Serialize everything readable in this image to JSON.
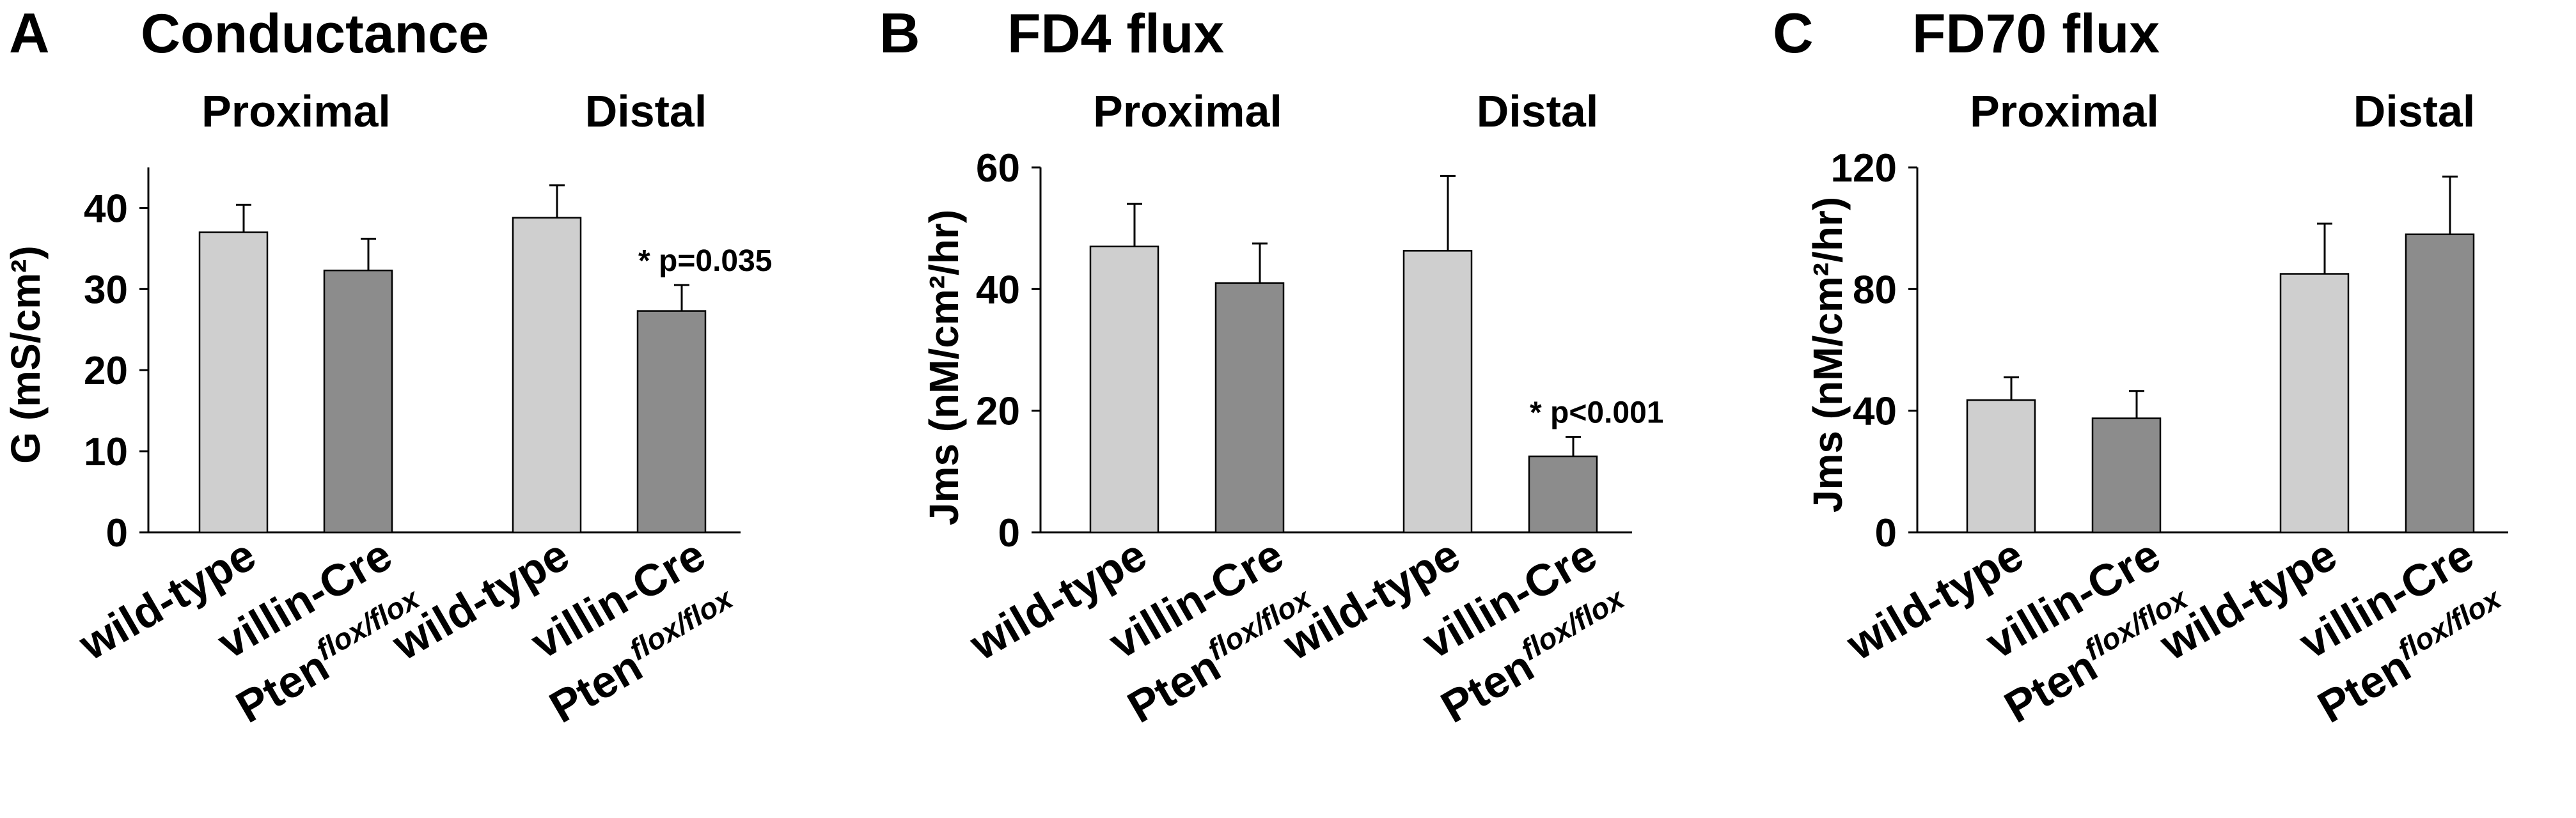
{
  "colors": {
    "wild_type_bar": "#cfcfcf",
    "mutant_bar": "#8c8c8c",
    "axis": "#000000"
  },
  "chart_data": [
    {
      "type": "bar",
      "panel_letter": "A",
      "title": "Conductance",
      "groups": [
        "Proximal",
        "Distal"
      ],
      "categories": [
        "wild-type",
        "villin-Cre Ptenflox/flox",
        "wild-type",
        "villin-Cre Ptenflox/flox"
      ],
      "values": [
        37,
        32.3,
        38.8,
        27.3
      ],
      "errors": [
        3.4,
        3.9,
        4.0,
        3.2
      ],
      "ylabel": "G (mS/cm²)",
      "ylim": [
        0,
        45
      ],
      "yticks": [
        0,
        10,
        20,
        30,
        40
      ],
      "annotations": [
        {
          "bar": 3,
          "text": "* p=0.035"
        }
      ]
    },
    {
      "type": "bar",
      "panel_letter": "B",
      "title": "FD4 flux",
      "groups": [
        "Proximal",
        "Distal"
      ],
      "categories": [
        "wild-type",
        "villin-Cre Ptenflox/flox",
        "wild-type",
        "villin-Cre Ptenflox/flox"
      ],
      "values": [
        47,
        41,
        46.3,
        12.5
      ],
      "errors": [
        7,
        6.5,
        12.3,
        3.2
      ],
      "ylabel": "Jms (nM/cm²/hr)",
      "ylim": [
        0,
        60
      ],
      "yticks": [
        0,
        20,
        40,
        60
      ],
      "annotations": [
        {
          "bar": 3,
          "text": "* p<0.001"
        }
      ]
    },
    {
      "type": "bar",
      "panel_letter": "C",
      "title": "FD70 flux",
      "groups": [
        "Proximal",
        "Distal"
      ],
      "categories": [
        "wild-type",
        "villin-Cre Ptenflox/flox",
        "wild-type",
        "villin-Cre Ptenflox/flox"
      ],
      "values": [
        43.5,
        37.5,
        85,
        98
      ],
      "errors": [
        7.5,
        9,
        16.5,
        19
      ],
      "ylabel": "Jms (nM/cm²/hr)",
      "ylim": [
        0,
        120
      ],
      "yticks": [
        0,
        40,
        80,
        120
      ],
      "annotations": []
    }
  ],
  "labels": {
    "wild_type": "wild-type",
    "villin_cre": "villin-Cre",
    "pten": "Pten",
    "flox": "flox/flox"
  }
}
